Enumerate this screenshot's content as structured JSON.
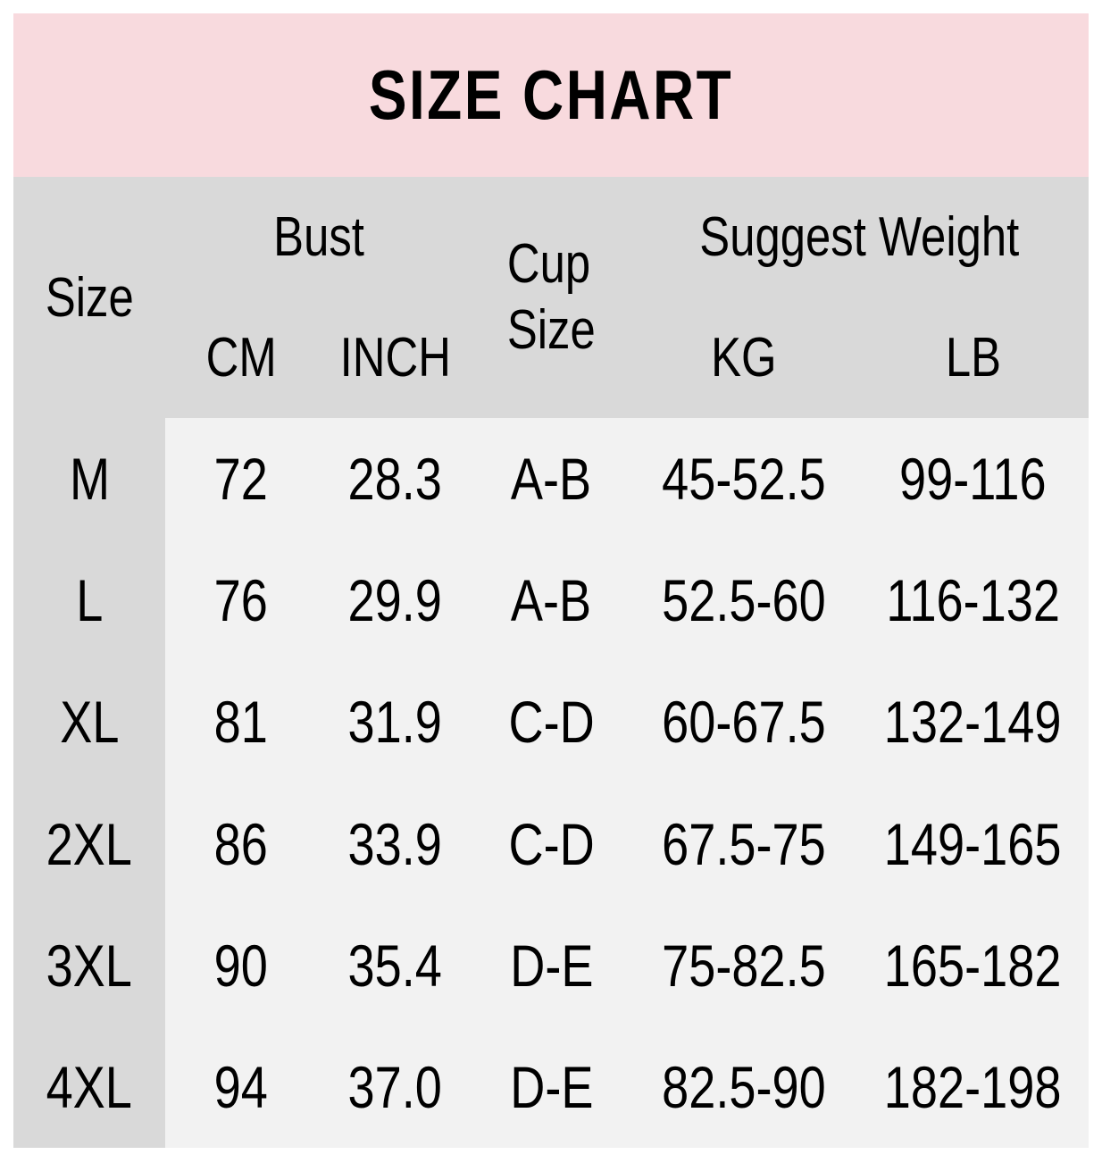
{
  "chart_data": {
    "type": "table",
    "title": "SIZE CHART",
    "header": {
      "size": "Size",
      "bust": "Bust",
      "cm": "CM",
      "inch": "INCH",
      "cup_line1": "Cup",
      "cup_line2": "Size",
      "suggest_weight": "Suggest Weight",
      "kg": "KG",
      "lb": "LB"
    },
    "columns": [
      "Size",
      "Bust CM",
      "Bust INCH",
      "Cup Size",
      "Suggest Weight KG",
      "Suggest Weight LB"
    ],
    "rows": [
      {
        "size": "M",
        "bust_cm": "72",
        "bust_inch": "28.3",
        "cup_size": "A-B",
        "weight_kg": "45-52.5",
        "weight_lb": "99-116"
      },
      {
        "size": "L",
        "bust_cm": "76",
        "bust_inch": "29.9",
        "cup_size": "A-B",
        "weight_kg": "52.5-60",
        "weight_lb": "116-132"
      },
      {
        "size": "XL",
        "bust_cm": "81",
        "bust_inch": "31.9",
        "cup_size": "C-D",
        "weight_kg": "60-67.5",
        "weight_lb": "132-149"
      },
      {
        "size": "2XL",
        "bust_cm": "86",
        "bust_inch": "33.9",
        "cup_size": "C-D",
        "weight_kg": "67.5-75",
        "weight_lb": "149-165"
      },
      {
        "size": "3XL",
        "bust_cm": "90",
        "bust_inch": "35.4",
        "cup_size": "D-E",
        "weight_kg": "75-82.5",
        "weight_lb": "165-182"
      },
      {
        "size": "4XL",
        "bust_cm": "94",
        "bust_inch": "37.0",
        "cup_size": "D-E",
        "weight_kg": "82.5-90",
        "weight_lb": "182-198"
      }
    ],
    "layout": {
      "legend": "none",
      "grid": "off"
    }
  },
  "colors": {
    "title_bg": "#f8dade",
    "header_bg": "#d9d9d9",
    "body_bg": "#f2f2f2",
    "size_column_bg": "#d9d9d9",
    "page_bg": "#ffffff",
    "text": "#000000"
  }
}
